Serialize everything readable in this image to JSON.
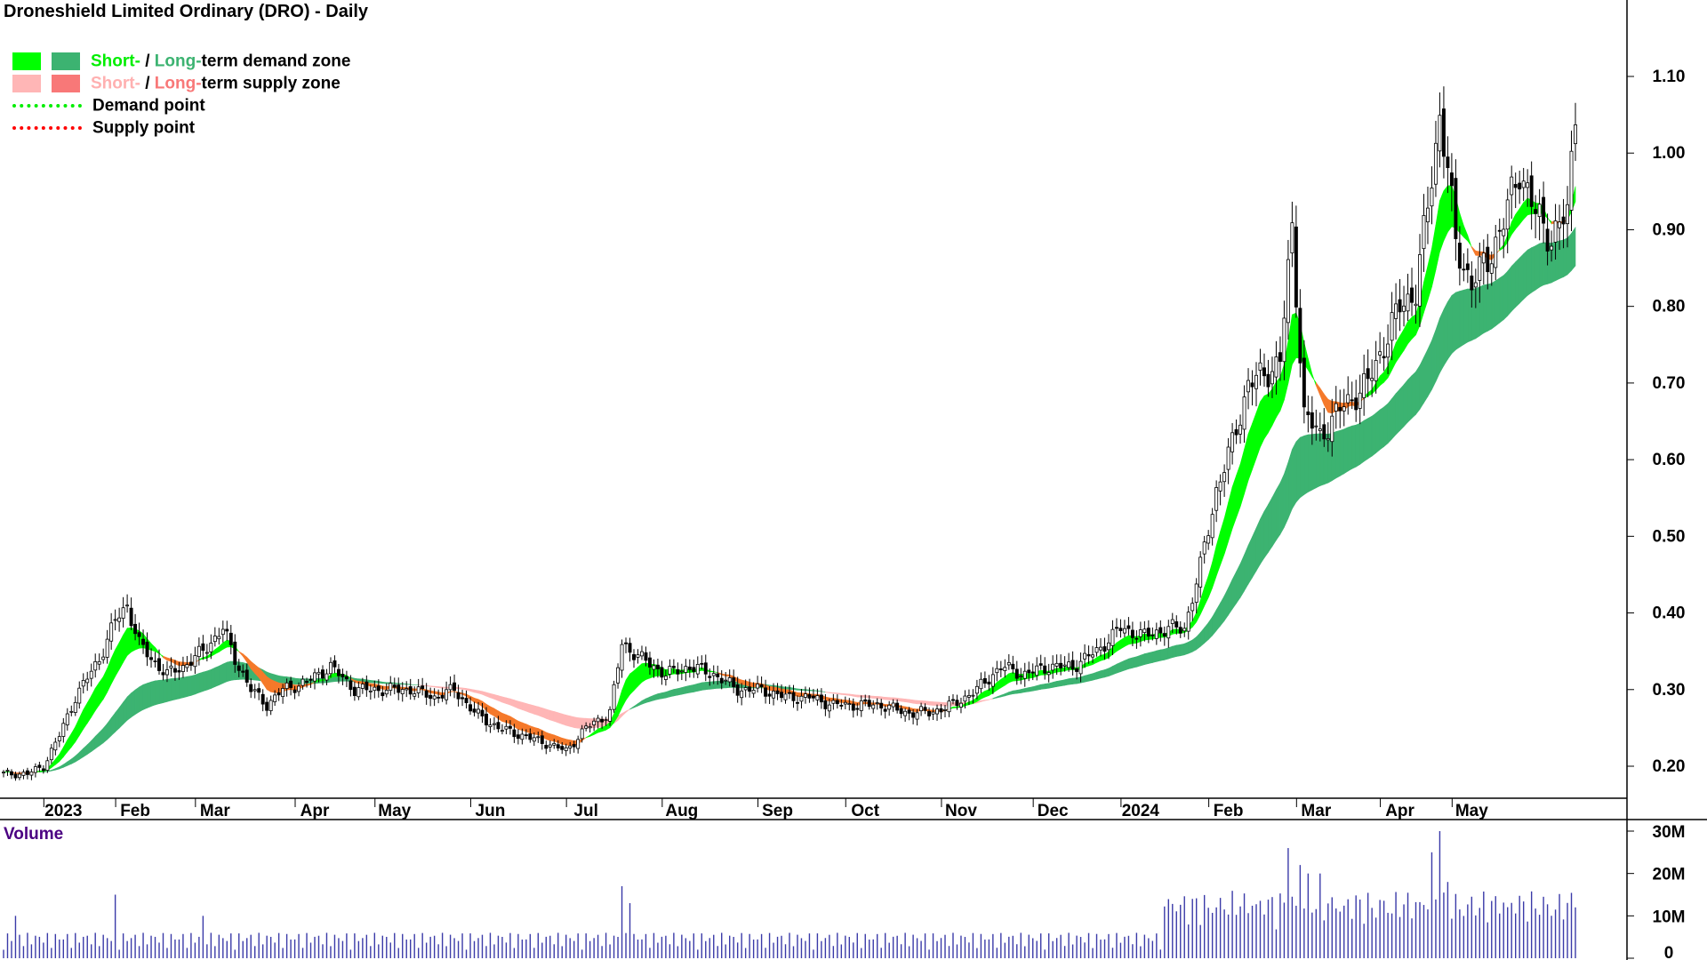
{
  "chart_title": "Droneshield Limited Ordinary (DRO) - Daily",
  "legend": {
    "demand_zone": {
      "short": "Short-",
      "sep": " / ",
      "long": "Long-",
      "rest": "term demand zone",
      "short_color": "#00ff00",
      "long_color": "#3cb371"
    },
    "supply_zone": {
      "short": "Short-",
      "sep": " / ",
      "long": "Long-",
      "rest": "term supply zone",
      "short_color": "#ffb6b6",
      "long_color": "#f87878"
    },
    "demand_point": {
      "label": "Demand point",
      "color": "#00ee00"
    },
    "supply_point": {
      "label": "Supply point",
      "color": "#ff0000"
    }
  },
  "volume_label": "Volume",
  "chart_data": {
    "type": "candlestick",
    "title": "Droneshield Limited Ordinary (DRO) - Daily",
    "price_axis": {
      "ticks": [
        "0.20",
        "0.30",
        "0.40",
        "0.50",
        "0.60",
        "0.70",
        "0.80",
        "0.90",
        "1.00",
        "1.10"
      ],
      "ylim": [
        0.15,
        1.25
      ]
    },
    "volume_axis": {
      "ticks": [
        "0",
        "10M",
        "20M",
        "30M"
      ],
      "ylim": [
        0,
        30
      ]
    },
    "x_labels": [
      "2023",
      "Feb",
      "Mar",
      "Apr",
      "May",
      "Jun",
      "Jul",
      "Aug",
      "Sep",
      "Oct",
      "Nov",
      "Dec",
      "2024",
      "Feb",
      "Mar",
      "Apr",
      "May"
    ],
    "x_label_index": [
      15,
      33,
      53,
      78,
      98,
      122,
      146,
      170,
      194,
      216,
      240,
      263,
      285,
      307,
      329,
      350,
      368
    ],
    "total_bars": 395,
    "close_keypoints": [
      [
        0,
        0.19
      ],
      [
        6,
        0.19
      ],
      [
        10,
        0.2
      ],
      [
        14,
        0.24
      ],
      [
        18,
        0.29
      ],
      [
        24,
        0.34
      ],
      [
        28,
        0.39
      ],
      [
        31,
        0.41
      ],
      [
        34,
        0.36
      ],
      [
        37,
        0.34
      ],
      [
        41,
        0.32
      ],
      [
        45,
        0.33
      ],
      [
        50,
        0.35
      ],
      [
        55,
        0.38
      ],
      [
        58,
        0.34
      ],
      [
        62,
        0.3
      ],
      [
        66,
        0.28
      ],
      [
        70,
        0.3
      ],
      [
        76,
        0.31
      ],
      [
        82,
        0.33
      ],
      [
        88,
        0.3
      ],
      [
        95,
        0.3
      ],
      [
        102,
        0.3
      ],
      [
        108,
        0.29
      ],
      [
        113,
        0.3
      ],
      [
        118,
        0.27
      ],
      [
        124,
        0.25
      ],
      [
        130,
        0.24
      ],
      [
        136,
        0.23
      ],
      [
        141,
        0.22
      ],
      [
        146,
        0.25
      ],
      [
        152,
        0.27
      ],
      [
        155,
        0.36
      ],
      [
        160,
        0.34
      ],
      [
        166,
        0.32
      ],
      [
        172,
        0.33
      ],
      [
        178,
        0.32
      ],
      [
        184,
        0.3
      ],
      [
        190,
        0.3
      ],
      [
        196,
        0.29
      ],
      [
        202,
        0.29
      ],
      [
        208,
        0.28
      ],
      [
        214,
        0.28
      ],
      [
        220,
        0.28
      ],
      [
        226,
        0.27
      ],
      [
        232,
        0.27
      ],
      [
        238,
        0.28
      ],
      [
        244,
        0.3
      ],
      [
        250,
        0.33
      ],
      [
        256,
        0.32
      ],
      [
        262,
        0.33
      ],
      [
        268,
        0.33
      ],
      [
        274,
        0.35
      ],
      [
        280,
        0.38
      ],
      [
        286,
        0.37
      ],
      [
        292,
        0.38
      ],
      [
        296,
        0.38
      ],
      [
        300,
        0.46
      ],
      [
        304,
        0.56
      ],
      [
        308,
        0.62
      ],
      [
        312,
        0.7
      ],
      [
        316,
        0.71
      ],
      [
        320,
        0.73
      ],
      [
        323,
        0.9
      ],
      [
        326,
        0.66
      ],
      [
        330,
        0.63
      ],
      [
        334,
        0.66
      ],
      [
        338,
        0.68
      ],
      [
        342,
        0.7
      ],
      [
        346,
        0.75
      ],
      [
        350,
        0.8
      ],
      [
        354,
        0.82
      ],
      [
        357,
        0.93
      ],
      [
        360,
        1.05
      ],
      [
        362,
        0.98
      ],
      [
        364,
        0.88
      ],
      [
        368,
        0.83
      ],
      [
        372,
        0.86
      ],
      [
        376,
        0.91
      ],
      [
        380,
        0.98
      ],
      [
        384,
        0.92
      ],
      [
        388,
        0.89
      ],
      [
        392,
        0.92
      ],
      [
        394,
        1.06
      ]
    ],
    "volume_spikes_millions": {
      "3": 10,
      "28": 15,
      "50": 10,
      "155": 17,
      "157": 13,
      "298": 14,
      "304": 12,
      "322": 26,
      "325": 22,
      "327": 20,
      "330": 20,
      "335": 11,
      "358": 25,
      "360": 30,
      "362": 18,
      "394": 12
    }
  }
}
